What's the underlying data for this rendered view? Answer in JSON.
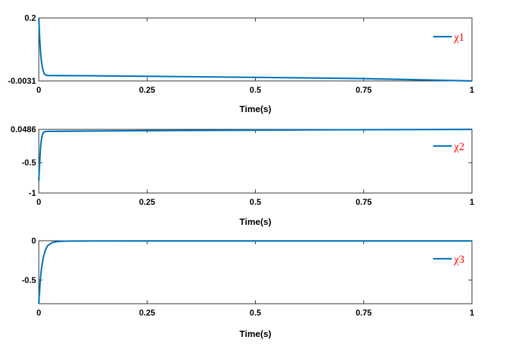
{
  "chart_data": [
    {
      "type": "line",
      "xlabel": "Time(s)",
      "xlim": [
        0,
        1
      ],
      "ylim": [
        -0.0031,
        0.2
      ],
      "xticks": [
        "0",
        "0.25",
        "0.5",
        "0.75",
        "1"
      ],
      "yticks": [
        "-0.0031",
        "0.2"
      ],
      "ytick_values": [
        -0.0031,
        0.2
      ],
      "grid": false,
      "legend_position": "right",
      "color": "#0072BD",
      "series": [
        {
          "name": "χ1",
          "x": [
            0,
            0.002,
            0.004,
            0.006,
            0.008,
            0.01,
            0.012,
            0.015,
            0.02,
            0.05,
            0.1,
            0.25,
            0.5,
            0.75,
            1.0
          ],
          "y": [
            0.2,
            0.135,
            0.09,
            0.06,
            0.042,
            0.03,
            0.022,
            0.0165,
            0.0145,
            0.0142,
            0.0138,
            0.0119,
            0.0085,
            0.0045,
            -0.0031
          ]
        }
      ]
    },
    {
      "type": "line",
      "xlabel": "Time(s)",
      "xlim": [
        0,
        1
      ],
      "ylim": [
        -1,
        0.0486
      ],
      "xticks": [
        "0",
        "0.25",
        "0.5",
        "0.75",
        "1"
      ],
      "yticks": [
        "-1",
        "-0.5",
        "0.0486"
      ],
      "ytick_values": [
        -1,
        -0.5,
        0.0486
      ],
      "grid": false,
      "legend_position": "right",
      "color": "#0072BD",
      "series": [
        {
          "name": "χ2",
          "x": [
            0,
            0.002,
            0.004,
            0.006,
            0.008,
            0.01,
            0.012,
            0.015,
            0.02,
            0.05,
            0.1,
            0.25,
            0.5,
            0.75,
            1.0
          ],
          "y": [
            -0.8,
            -0.5,
            -0.25,
            -0.12,
            -0.05,
            -0.01,
            0.005,
            0.012,
            0.015,
            0.017,
            0.02,
            0.027,
            0.036,
            0.043,
            0.0486
          ]
        }
      ]
    },
    {
      "type": "line",
      "xlabel": "Time(s)",
      "xlim": [
        0,
        1
      ],
      "ylim": [
        -0.8,
        0
      ],
      "xticks": [
        "0",
        "0.25",
        "0.5",
        "0.75",
        "1"
      ],
      "yticks": [
        "-0.5",
        "0"
      ],
      "ytick_values": [
        -0.5,
        0
      ],
      "grid": false,
      "legend_position": "right",
      "color": "#0072BD",
      "series": [
        {
          "name": "χ3",
          "x": [
            0,
            0.003,
            0.006,
            0.01,
            0.015,
            0.02,
            0.03,
            0.04,
            0.05,
            0.07,
            0.1,
            0.25,
            0.5,
            0.75,
            1.0
          ],
          "y": [
            -0.8,
            -0.53,
            -0.36,
            -0.22,
            -0.12,
            -0.065,
            -0.025,
            -0.012,
            -0.007,
            -0.004,
            -0.003,
            -0.002,
            -0.002,
            -0.002,
            -0.002
          ]
        }
      ]
    }
  ]
}
